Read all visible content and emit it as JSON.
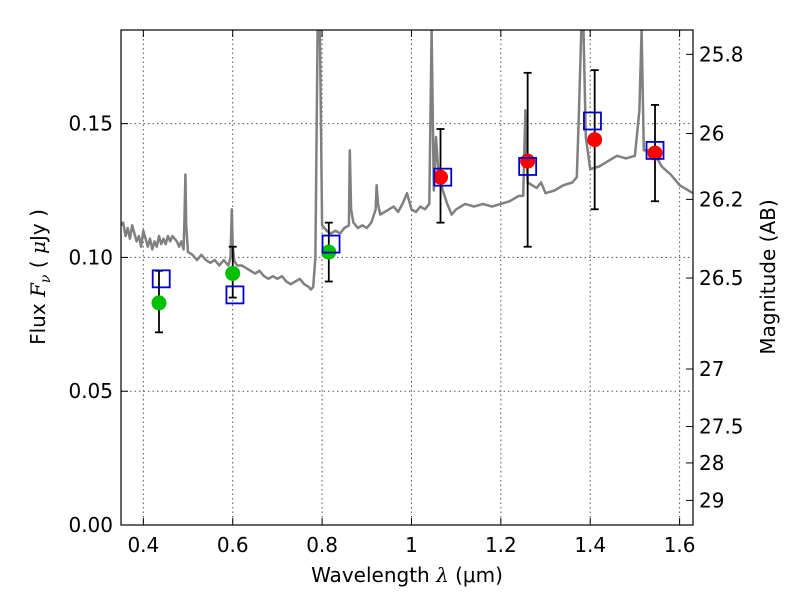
{
  "chart_data": {
    "type": "scatter",
    "xlabel": "Wavelength λ (μm)",
    "xlabel_parts": {
      "pre": "Wavelength  ",
      "sym": "λ",
      "post": " (μm)"
    },
    "ylabel": "Flux F_ν ( μJy )",
    "ylabel_parts": {
      "pre": "Flux  ",
      "sym": "F",
      "sub": "ν",
      "mid": "  ( ",
      "mu": "μ",
      "post": "Jy )"
    },
    "y2label": "Magnitude (AB)",
    "xlim": [
      0.35,
      1.63
    ],
    "ylim": [
      0.0,
      0.185
    ],
    "grid": true,
    "xticks": [
      0.4,
      0.6,
      0.8,
      1.0,
      1.2,
      1.4,
      1.6
    ],
    "xtick_labels": [
      "0.4",
      "0.6",
      "0.8",
      "1",
      "1.2",
      "1.4",
      "1.6"
    ],
    "yticks": [
      0.0,
      0.05,
      0.1,
      0.15
    ],
    "ytick_labels": [
      "0.00",
      "0.05",
      "0.10",
      "0.15"
    ],
    "mag_ticks": [
      {
        "label": "25.8",
        "flux": 0.1759
      },
      {
        "label": "26",
        "flux": 0.1463
      },
      {
        "label": "26.2",
        "flux": 0.1217
      },
      {
        "label": "26.5",
        "flux": 0.0923
      },
      {
        "label": "27",
        "flux": 0.0583
      },
      {
        "label": "27.5",
        "flux": 0.0368
      },
      {
        "label": "28",
        "flux": 0.0232
      },
      {
        "label": "29",
        "flux": 0.0092
      }
    ],
    "colors": {
      "model": "#808080",
      "green": "#00c000",
      "red": "#ff0000",
      "model_box": "#0000cc",
      "errorbar": "#000000",
      "grid": "#555555"
    },
    "series": [
      {
        "name": "Model spectrum",
        "kind": "line",
        "x": [
          0.35,
          0.355,
          0.36,
          0.365,
          0.37,
          0.375,
          0.38,
          0.385,
          0.39,
          0.395,
          0.4,
          0.405,
          0.41,
          0.415,
          0.42,
          0.425,
          0.43,
          0.435,
          0.44,
          0.445,
          0.45,
          0.455,
          0.46,
          0.465,
          0.47,
          0.475,
          0.48,
          0.485,
          0.49,
          0.492,
          0.494,
          0.496,
          0.5,
          0.51,
          0.52,
          0.53,
          0.54,
          0.55,
          0.56,
          0.57,
          0.58,
          0.59,
          0.595,
          0.598,
          0.6,
          0.603,
          0.606,
          0.61,
          0.62,
          0.63,
          0.64,
          0.65,
          0.66,
          0.67,
          0.68,
          0.69,
          0.7,
          0.71,
          0.72,
          0.73,
          0.74,
          0.75,
          0.76,
          0.77,
          0.775,
          0.78,
          0.785,
          0.79,
          0.795,
          0.8,
          0.81,
          0.82,
          0.83,
          0.84,
          0.85,
          0.86,
          0.862,
          0.865,
          0.87,
          0.88,
          0.89,
          0.9,
          0.91,
          0.92,
          0.922,
          0.925,
          0.93,
          0.94,
          0.95,
          0.96,
          0.97,
          0.98,
          0.99,
          1.0,
          1.01,
          1.02,
          1.03,
          1.04,
          1.045,
          1.05,
          1.055,
          1.06,
          1.07,
          1.08,
          1.09,
          1.1,
          1.12,
          1.14,
          1.16,
          1.18,
          1.2,
          1.22,
          1.24,
          1.25,
          1.255,
          1.26,
          1.27,
          1.28,
          1.29,
          1.3,
          1.32,
          1.34,
          1.36,
          1.37,
          1.375,
          1.38,
          1.385,
          1.39,
          1.4,
          1.42,
          1.44,
          1.46,
          1.48,
          1.5,
          1.51,
          1.515,
          1.52,
          1.53,
          1.54,
          1.55,
          1.56,
          1.58,
          1.6,
          1.62,
          1.63
        ],
        "y": [
          0.112,
          0.113,
          0.108,
          0.111,
          0.107,
          0.112,
          0.109,
          0.106,
          0.108,
          0.104,
          0.11,
          0.107,
          0.104,
          0.107,
          0.103,
          0.106,
          0.104,
          0.108,
          0.105,
          0.107,
          0.105,
          0.108,
          0.106,
          0.108,
          0.107,
          0.106,
          0.104,
          0.106,
          0.103,
          0.115,
          0.131,
          0.112,
          0.102,
          0.101,
          0.099,
          0.101,
          0.099,
          0.098,
          0.099,
          0.097,
          0.099,
          0.097,
          0.1,
          0.118,
          0.105,
          0.099,
          0.098,
          0.097,
          0.097,
          0.096,
          0.095,
          0.094,
          0.095,
          0.093,
          0.092,
          0.093,
          0.092,
          0.093,
          0.091,
          0.09,
          0.091,
          0.092,
          0.09,
          0.089,
          0.088,
          0.089,
          0.1,
          0.185,
          0.185,
          0.112,
          0.11,
          0.109,
          0.11,
          0.109,
          0.111,
          0.112,
          0.14,
          0.118,
          0.113,
          0.111,
          0.112,
          0.111,
          0.113,
          0.118,
          0.127,
          0.12,
          0.116,
          0.117,
          0.118,
          0.119,
          0.117,
          0.12,
          0.124,
          0.118,
          0.117,
          0.119,
          0.118,
          0.12,
          0.185,
          0.125,
          0.145,
          0.132,
          0.125,
          0.12,
          0.116,
          0.118,
          0.12,
          0.119,
          0.12,
          0.119,
          0.12,
          0.121,
          0.123,
          0.123,
          0.155,
          0.128,
          0.127,
          0.126,
          0.128,
          0.124,
          0.125,
          0.127,
          0.128,
          0.13,
          0.155,
          0.185,
          0.185,
          0.145,
          0.133,
          0.134,
          0.136,
          0.138,
          0.137,
          0.138,
          0.155,
          0.185,
          0.14,
          0.14,
          0.138,
          0.137,
          0.134,
          0.131,
          0.127,
          0.125,
          0.124
        ]
      },
      {
        "name": "Green detections",
        "kind": "points",
        "marker": "circle",
        "color_key": "green",
        "x": [
          0.435,
          0.6,
          0.815
        ],
        "y": [
          0.083,
          0.094,
          0.102
        ],
        "yerr": [
          [
            0.072,
            0.095
          ],
          [
            0.085,
            0.104
          ],
          [
            0.091,
            0.113
          ]
        ]
      },
      {
        "name": "Red detections",
        "kind": "points",
        "marker": "circle",
        "color_key": "red",
        "x": [
          1.065,
          1.26,
          1.41,
          1.545
        ],
        "y": [
          0.13,
          0.136,
          0.144,
          0.139
        ],
        "yerr": [
          [
            0.113,
            0.148
          ],
          [
            0.104,
            0.169
          ],
          [
            0.118,
            0.17
          ],
          [
            0.121,
            0.157
          ]
        ]
      },
      {
        "name": "Model photometry",
        "kind": "points",
        "marker": "open-square",
        "color_key": "model_box",
        "x": [
          0.44,
          0.605,
          0.82,
          1.07,
          1.26,
          1.405,
          1.545
        ],
        "y": [
          0.092,
          0.086,
          0.105,
          0.13,
          0.134,
          0.151,
          0.14
        ]
      }
    ]
  }
}
